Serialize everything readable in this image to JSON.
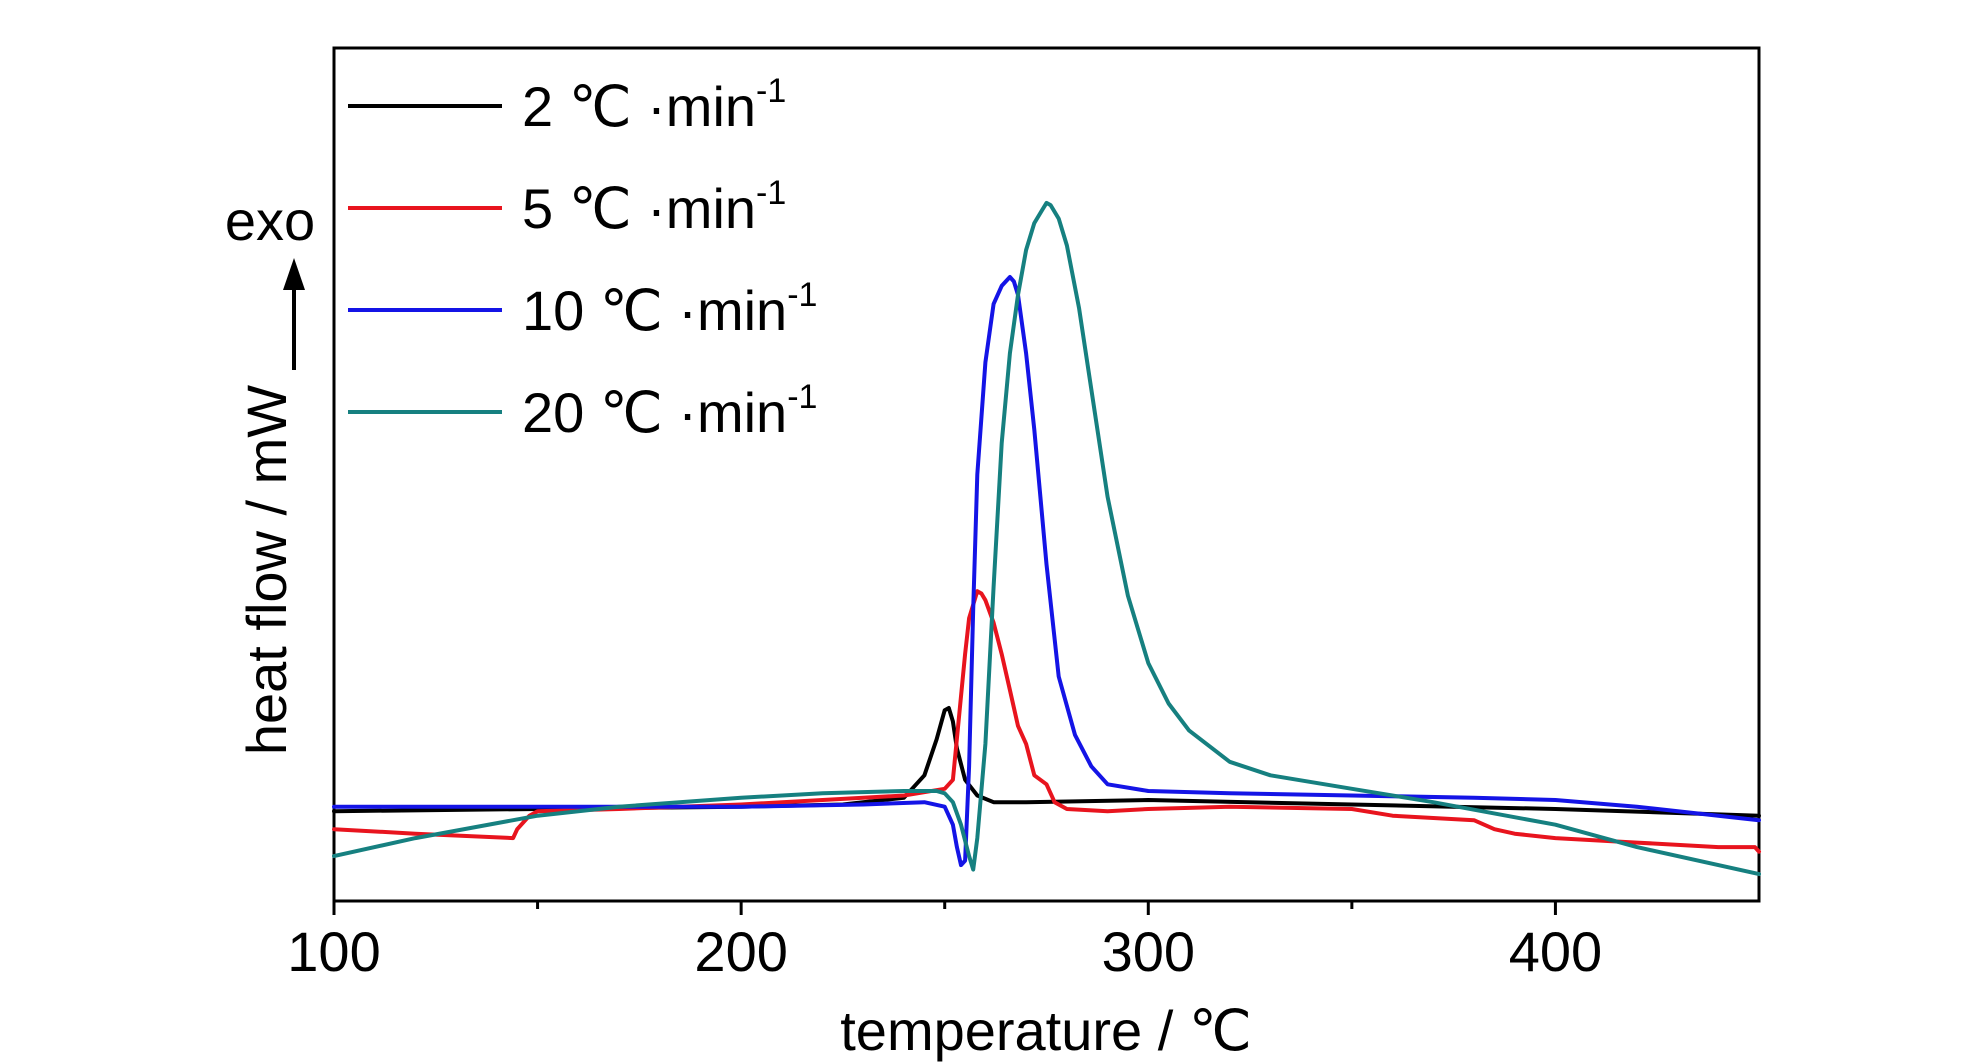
{
  "chart_data": {
    "type": "line",
    "xlabel": "temperature / ℃",
    "ylabel": "heat flow / mW",
    "annotation": "exo",
    "xlim": [
      100,
      450
    ],
    "ylim": [
      -2,
      17
    ],
    "xticks": [
      100,
      200,
      300,
      400
    ],
    "minor_xticks": [
      150,
      250,
      350
    ],
    "grid": false,
    "legend_position": "top-left",
    "series": [
      {
        "name": "2 ℃ ·min",
        "superscript": "-1",
        "color": "#000000",
        "x": [
          100,
          150,
          200,
          225,
          240,
          245,
          248,
          250,
          251,
          252,
          253,
          255,
          258,
          262,
          270,
          300,
          350,
          400,
          450
        ],
        "y": [
          0,
          0.05,
          0.1,
          0.15,
          0.3,
          0.8,
          1.6,
          2.25,
          2.3,
          2.0,
          1.4,
          0.7,
          0.35,
          0.2,
          0.2,
          0.25,
          0.15,
          0.05,
          -0.1
        ]
      },
      {
        "name": "5 ℃ ·min",
        "superscript": "-1",
        "color": "#e8141e",
        "x": [
          100,
          120,
          144,
          145,
          148,
          150,
          170,
          200,
          220,
          240,
          250,
          252,
          255,
          256,
          257,
          258,
          259,
          260,
          262,
          264,
          266,
          268,
          270,
          272,
          275,
          277,
          280,
          290,
          300,
          320,
          350,
          360,
          380,
          385,
          390,
          400,
          420,
          440,
          449,
          450
        ],
        "y": [
          -0.4,
          -0.5,
          -0.6,
          -0.4,
          -0.1,
          0,
          0.05,
          0.15,
          0.25,
          0.35,
          0.5,
          0.7,
          3.5,
          4.3,
          4.6,
          4.9,
          4.85,
          4.7,
          4.2,
          3.5,
          2.7,
          1.9,
          1.5,
          0.8,
          0.6,
          0.2,
          0.05,
          0,
          0.05,
          0.1,
          0.05,
          -0.1,
          -0.2,
          -0.4,
          -0.5,
          -0.6,
          -0.7,
          -0.8,
          -0.8,
          -0.9
        ]
      },
      {
        "name": "10 ℃ ·min",
        "superscript": "-1",
        "color": "#1414e6",
        "x": [
          100,
          150,
          200,
          230,
          245,
          250,
          252,
          253,
          254,
          255,
          256,
          257,
          258,
          260,
          262,
          264,
          266,
          267,
          268,
          270,
          272,
          275,
          278,
          282,
          286,
          290,
          300,
          320,
          350,
          380,
          400,
          420,
          440,
          450
        ],
        "y": [
          0.1,
          0.1,
          0.1,
          0.15,
          0.2,
          0.1,
          -0.3,
          -0.8,
          -1.2,
          -1.1,
          1.0,
          4.5,
          7.5,
          10.0,
          11.3,
          11.7,
          11.9,
          11.8,
          11.5,
          10.2,
          8.5,
          5.5,
          3.0,
          1.7,
          1.0,
          0.6,
          0.45,
          0.4,
          0.35,
          0.3,
          0.25,
          0.1,
          -0.1,
          -0.2
        ]
      },
      {
        "name": "20 ℃ ·min",
        "superscript": "-1",
        "color": "#168080",
        "x": [
          100,
          120,
          150,
          170,
          200,
          220,
          240,
          248,
          250,
          252,
          254,
          256,
          257,
          258,
          260,
          262,
          264,
          266,
          268,
          270,
          272,
          274,
          275,
          276,
          278,
          280,
          283,
          286,
          290,
          295,
          300,
          305,
          310,
          320,
          330,
          350,
          370,
          400,
          420,
          450
        ],
        "y": [
          -1.0,
          -0.6,
          -0.1,
          0.1,
          0.3,
          0.4,
          0.45,
          0.45,
          0.4,
          0.2,
          -0.3,
          -1.0,
          -1.3,
          -0.6,
          1.5,
          5.0,
          8.2,
          10.2,
          11.5,
          12.5,
          13.1,
          13.4,
          13.55,
          13.5,
          13.2,
          12.6,
          11.2,
          9.4,
          7.0,
          4.8,
          3.3,
          2.4,
          1.8,
          1.1,
          0.8,
          0.5,
          0.2,
          -0.3,
          -0.8,
          -1.4
        ]
      }
    ]
  }
}
